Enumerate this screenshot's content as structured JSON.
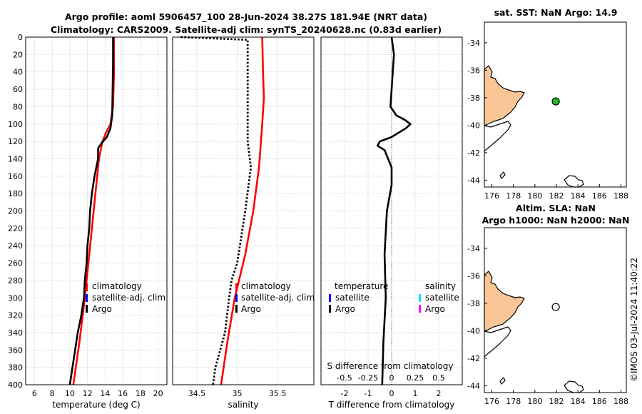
{
  "title": {
    "line1": "Argo profile: aoml 5906457_100 28-Jun-2024 38.27S 181.94E (NRT data)",
    "line2": "Climatology: CARS2009. Satellite-adj clim: synTS_20240628.nc (0.83d earlier)"
  },
  "colors": {
    "climatology": "#ff0000",
    "satellite": "#0000ff",
    "argo": "#000000",
    "sat_s": "#00e5ff",
    "argo_s": "#ff00ff",
    "land": "#f9c697",
    "marker": "#22bb22"
  },
  "chart_data": [
    {
      "type": "line",
      "id": "temperature",
      "xlabel": "temperature (deg C)",
      "ylabel": "",
      "xlim": [
        5,
        21
      ],
      "ylim": [
        0,
        400
      ],
      "xticks": [
        6,
        8,
        10,
        12,
        14,
        16,
        18,
        20
      ],
      "yticks": [
        0,
        20,
        40,
        60,
        80,
        100,
        120,
        140,
        160,
        180,
        200,
        220,
        240,
        260,
        280,
        300,
        320,
        340,
        360,
        380,
        400
      ],
      "series": [
        {
          "name": "climatology",
          "color": "#ff0000",
          "dash": "",
          "depth": [
            0,
            40,
            80,
            100,
            110,
            120,
            140,
            200,
            260,
            300,
            350,
            400
          ],
          "values": [
            15.0,
            15.0,
            14.9,
            14.6,
            14.1,
            13.7,
            13.3,
            12.7,
            12.1,
            11.7,
            11.1,
            10.4
          ]
        },
        {
          "name": "Argo",
          "color": "#000000",
          "dash": "",
          "depth": [
            0,
            30,
            60,
            90,
            105,
            115,
            122,
            128,
            140,
            160,
            180,
            200,
            220,
            240,
            260,
            280,
            300,
            320,
            340,
            360,
            380,
            400
          ],
          "values": [
            14.9,
            14.9,
            14.85,
            14.8,
            14.6,
            14.2,
            13.6,
            13.2,
            13.2,
            12.8,
            12.5,
            12.3,
            12.2,
            12.0,
            11.9,
            11.7,
            11.6,
            11.3,
            10.9,
            10.6,
            10.3,
            10.0
          ]
        }
      ],
      "legend": {
        "location": "center-right",
        "entries": [
          "climatology",
          "satellite-adj. clim",
          "Argo"
        ]
      }
    },
    {
      "type": "line",
      "id": "salinity",
      "xlabel": "salinity",
      "ylabel": "",
      "xlim": [
        34.2,
        35.95
      ],
      "ylim": [
        0,
        400
      ],
      "xticks": [
        34.5,
        35,
        35.5
      ],
      "series": [
        {
          "name": "climatology",
          "color": "#ff0000",
          "dash": "",
          "depth": [
            0,
            40,
            70,
            100,
            150,
            200,
            250,
            300,
            350,
            400
          ],
          "values": [
            35.31,
            35.32,
            35.33,
            35.31,
            35.27,
            35.2,
            35.1,
            34.97,
            34.88,
            34.8
          ]
        },
        {
          "name": "Argo",
          "color": "#000000",
          "dash": "dotted",
          "depth": [
            0,
            3,
            60,
            120,
            150,
            200,
            260,
            280,
            300,
            340,
            380,
            400
          ],
          "values": [
            34.3,
            35.13,
            35.13,
            35.13,
            35.17,
            35.1,
            35.0,
            34.93,
            34.9,
            34.85,
            34.73,
            34.7
          ]
        }
      ],
      "legend": {
        "location": "center-right",
        "entries": [
          "climatology",
          "satellite-adj. clim",
          "Argo"
        ]
      }
    },
    {
      "type": "line",
      "id": "difference",
      "xlabel": "T difference from climatology",
      "x2label": "S difference from climatology",
      "xlim": [
        -3,
        3
      ],
      "ylim": [
        0,
        400
      ],
      "xticks": [
        -2,
        -1,
        0,
        1,
        2
      ],
      "x2ticks": [
        "-0.5",
        "-0.25",
        "0",
        "0.25",
        "0.5"
      ],
      "series": [
        {
          "name": "T difference",
          "color": "#000000",
          "dash": "",
          "depth": [
            0,
            20,
            40,
            60,
            80,
            90,
            95,
            100,
            105,
            110,
            115,
            120,
            125,
            130,
            150,
            170,
            200,
            250,
            300,
            350,
            400
          ],
          "values": [
            0.0,
            0.1,
            0.05,
            0.0,
            -0.05,
            0.2,
            0.55,
            0.8,
            0.6,
            0.3,
            0.0,
            -0.5,
            -0.6,
            -0.3,
            0.0,
            0.0,
            -0.2,
            -0.3,
            -0.25,
            -0.35,
            -0.4
          ]
        }
      ],
      "legend": {
        "location": "center",
        "left_title": "temperature",
        "right_title": "salinity",
        "entries": [
          "satellite",
          "Argo",
          "satellite",
          "Argo"
        ]
      }
    },
    {
      "type": "scatter",
      "id": "map-sst",
      "title": "sat. SST: NaN Argo: 14.9",
      "xlim": [
        175.3,
        188.5
      ],
      "ylim": [
        -44.5,
        -32.5
      ],
      "xticks": [
        176,
        178,
        180,
        182,
        184,
        186,
        188
      ],
      "yticks": [
        -34,
        -36,
        -38,
        -40,
        -42,
        -44
      ],
      "points": [
        {
          "x": 181.94,
          "y": -38.27
        }
      ]
    },
    {
      "type": "scatter",
      "id": "map-sla",
      "title_line1": "Altim. SLA: NaN",
      "title_line2": "Argo h1000: NaN h2000: NaN",
      "xlim": [
        175.3,
        188.5
      ],
      "ylim": [
        -44.5,
        -32.5
      ],
      "xticks": [
        176,
        178,
        180,
        182,
        184,
        186,
        188
      ],
      "yticks": [
        -34,
        -36,
        -38,
        -40,
        -42,
        -44
      ],
      "points": [
        {
          "x": 181.94,
          "y": -38.27
        }
      ]
    }
  ],
  "footer": {
    "credit": "©IMOS 03-Jul-2024 11:40:22"
  }
}
